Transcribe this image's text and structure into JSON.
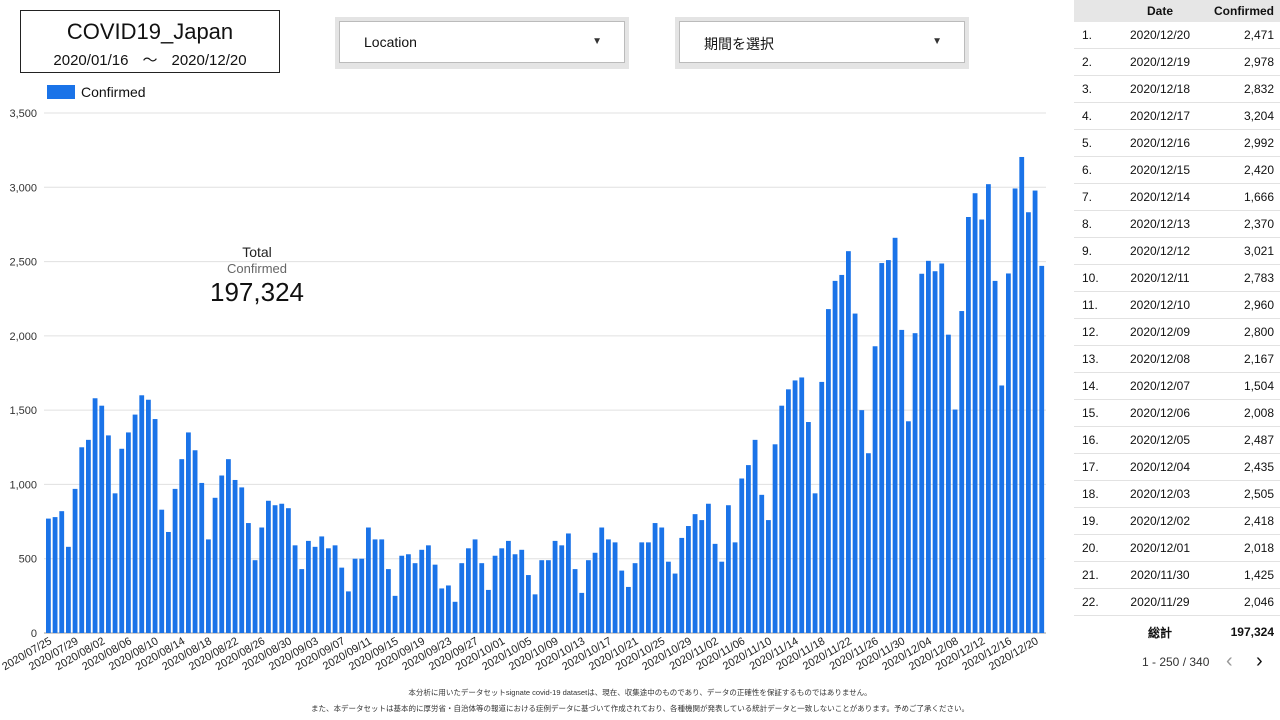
{
  "header": {
    "title": "COVID19_Japan",
    "date_start": "2020/01/16",
    "date_sep": "〜",
    "date_end": "2020/12/20"
  },
  "filters": {
    "location": "Location",
    "period": "期間を選択"
  },
  "legend": {
    "label": "Confirmed"
  },
  "scorecard": {
    "line1": "Total",
    "line2": "Confirmed",
    "value": "197,324"
  },
  "colors": {
    "bar": "#1a73e8"
  },
  "table": {
    "headers": [
      "",
      "Date",
      "Confirmed"
    ],
    "rows": [
      [
        "1.",
        "2020/12/20",
        "2,471"
      ],
      [
        "2.",
        "2020/12/19",
        "2,978"
      ],
      [
        "3.",
        "2020/12/18",
        "2,832"
      ],
      [
        "4.",
        "2020/12/17",
        "3,204"
      ],
      [
        "5.",
        "2020/12/16",
        "2,992"
      ],
      [
        "6.",
        "2020/12/15",
        "2,420"
      ],
      [
        "7.",
        "2020/12/14",
        "1,666"
      ],
      [
        "8.",
        "2020/12/13",
        "2,370"
      ],
      [
        "9.",
        "2020/12/12",
        "3,021"
      ],
      [
        "10.",
        "2020/12/11",
        "2,783"
      ],
      [
        "11.",
        "2020/12/10",
        "2,960"
      ],
      [
        "12.",
        "2020/12/09",
        "2,800"
      ],
      [
        "13.",
        "2020/12/08",
        "2,167"
      ],
      [
        "14.",
        "2020/12/07",
        "1,504"
      ],
      [
        "15.",
        "2020/12/06",
        "2,008"
      ],
      [
        "16.",
        "2020/12/05",
        "2,487"
      ],
      [
        "17.",
        "2020/12/04",
        "2,435"
      ],
      [
        "18.",
        "2020/12/03",
        "2,505"
      ],
      [
        "19.",
        "2020/12/02",
        "2,418"
      ],
      [
        "20.",
        "2020/12/01",
        "2,018"
      ],
      [
        "21.",
        "2020/11/30",
        "1,425"
      ],
      [
        "22.",
        "2020/11/29",
        "2,046"
      ]
    ],
    "total_label": "総計",
    "total_value": "197,324"
  },
  "pagination": {
    "range": "1 - 250 / 340",
    "prev_icon": "chevron-left-icon",
    "next_icon": "chevron-right-icon"
  },
  "footnotes": [
    "本分析に用いたデータセットsignate covid-19 datasetは、現在、収集途中のものであり、データの正確性を保証するものではありません。",
    "また、本データセットは基本的に厚労省・自治体等の報道における症例データに基づいて作成されており、各種機関が発表している統計データと一致しないことがあります。予めご了承ください。"
  ],
  "chart_data": {
    "type": "bar",
    "series": [
      {
        "name": "Confirmed"
      }
    ],
    "ylim": [
      0,
      3500
    ],
    "yticks": [
      "0",
      "500",
      "1,000",
      "1,500",
      "2,000",
      "2,500",
      "3,000",
      "3,500"
    ],
    "x_tick_labels": [
      "2020/07/25",
      "2020/07/29",
      "2020/08/02",
      "2020/08/06",
      "2020/08/10",
      "2020/08/14",
      "2020/08/18",
      "2020/08/22",
      "2020/08/26",
      "2020/08/30",
      "2020/09/03",
      "2020/09/07",
      "2020/09/11",
      "2020/09/15",
      "2020/09/19",
      "2020/09/23",
      "2020/09/27",
      "2020/10/01",
      "2020/10/05",
      "2020/10/09",
      "2020/10/13",
      "2020/10/17",
      "2020/10/21",
      "2020/10/25",
      "2020/10/29",
      "2020/11/02",
      "2020/11/06",
      "2020/11/10",
      "2020/11/14",
      "2020/11/18",
      "2020/11/22",
      "2020/11/26",
      "2020/11/30",
      "2020/12/04",
      "2020/12/08",
      "2020/12/12",
      "2020/12/16",
      "2020/12/20"
    ],
    "x_start": "2020/07/25",
    "x_end": "2020/12/20",
    "values": [
      770,
      780,
      820,
      580,
      970,
      1250,
      1300,
      1580,
      1530,
      1330,
      940,
      1240,
      1350,
      1470,
      1600,
      1570,
      1440,
      830,
      680,
      970,
      1170,
      1350,
      1230,
      1010,
      630,
      910,
      1060,
      1170,
      1030,
      980,
      740,
      490,
      710,
      890,
      860,
      870,
      840,
      590,
      430,
      620,
      580,
      650,
      570,
      590,
      440,
      280,
      500,
      500,
      710,
      630,
      630,
      430,
      250,
      520,
      530,
      470,
      560,
      590,
      460,
      300,
      320,
      210,
      470,
      570,
      630,
      470,
      290,
      520,
      570,
      620,
      530,
      560,
      390,
      260,
      490,
      490,
      620,
      590,
      670,
      430,
      270,
      490,
      540,
      710,
      630,
      610,
      420,
      310,
      470,
      610,
      610,
      740,
      710,
      480,
      400,
      640,
      720,
      800,
      760,
      870,
      600,
      480,
      860,
      610,
      1040,
      1130,
      1300,
      930,
      760,
      1270,
      1530,
      1640,
      1700,
      1720,
      1420,
      940,
      1690,
      2180,
      2370,
      2410,
      2570,
      2150,
      1500,
      1210,
      1930,
      2490,
      2510,
      2660,
      2040,
      1425,
      2018,
      2418,
      2505,
      2435,
      2487,
      2008,
      1504,
      2167,
      2800,
      2960,
      2783,
      3021,
      2370,
      1666,
      2420,
      2992,
      3204,
      2832,
      2978,
      2471
    ]
  }
}
